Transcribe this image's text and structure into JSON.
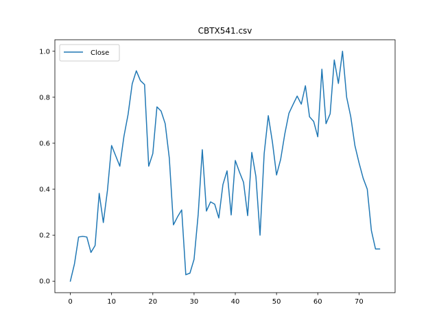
{
  "chart_data": {
    "type": "line",
    "title": "CBTX541.csv",
    "xlabel": "",
    "ylabel": "",
    "xlim": [
      -3.75,
      78.75
    ],
    "ylim": [
      -0.05,
      1.05
    ],
    "grid": false,
    "legend_position": "top-left",
    "x_ticks": [
      0,
      10,
      20,
      30,
      40,
      50,
      60,
      70
    ],
    "y_ticks": [
      0.0,
      0.2,
      0.4,
      0.6,
      0.8,
      1.0
    ],
    "x_tick_labels": [
      "0",
      "10",
      "20",
      "30",
      "40",
      "50",
      "60",
      "70"
    ],
    "y_tick_labels": [
      "0.0",
      "0.2",
      "0.4",
      "0.6",
      "0.8",
      "1.0"
    ],
    "series": [
      {
        "name": "Close",
        "color": "#1f77b4",
        "x": [
          0,
          1,
          2,
          3,
          4,
          5,
          6,
          7,
          8,
          9,
          10,
          11,
          12,
          13,
          14,
          15,
          16,
          17,
          18,
          19,
          20,
          21,
          22,
          23,
          24,
          25,
          26,
          27,
          28,
          29,
          30,
          31,
          32,
          33,
          34,
          35,
          36,
          37,
          38,
          39,
          40,
          41,
          42,
          43,
          44,
          45,
          46,
          47,
          48,
          49,
          50,
          51,
          52,
          53,
          54,
          55,
          56,
          57,
          58,
          59,
          60,
          61,
          62,
          63,
          64,
          65,
          66,
          67,
          68,
          69,
          70,
          71,
          72,
          73,
          74,
          75
        ],
        "values": [
          0.0,
          0.075,
          0.192,
          0.195,
          0.192,
          0.125,
          0.155,
          0.382,
          0.255,
          0.395,
          0.59,
          0.545,
          0.5,
          0.63,
          0.725,
          0.858,
          0.915,
          0.872,
          0.855,
          0.5,
          0.555,
          0.758,
          0.74,
          0.685,
          0.535,
          0.245,
          0.28,
          0.31,
          0.028,
          0.035,
          0.095,
          0.29,
          0.572,
          0.305,
          0.345,
          0.335,
          0.275,
          0.42,
          0.48,
          0.288,
          0.525,
          0.475,
          0.43,
          0.285,
          0.56,
          0.455,
          0.2,
          0.555,
          0.72,
          0.605,
          0.462,
          0.53,
          0.64,
          0.73,
          0.768,
          0.805,
          0.77,
          0.85,
          0.715,
          0.695,
          0.628,
          0.922,
          0.685,
          0.728,
          0.962,
          0.86,
          1.0,
          0.8,
          0.715,
          0.59,
          0.515,
          0.448,
          0.4,
          0.22,
          0.14,
          0.14
        ]
      }
    ]
  }
}
